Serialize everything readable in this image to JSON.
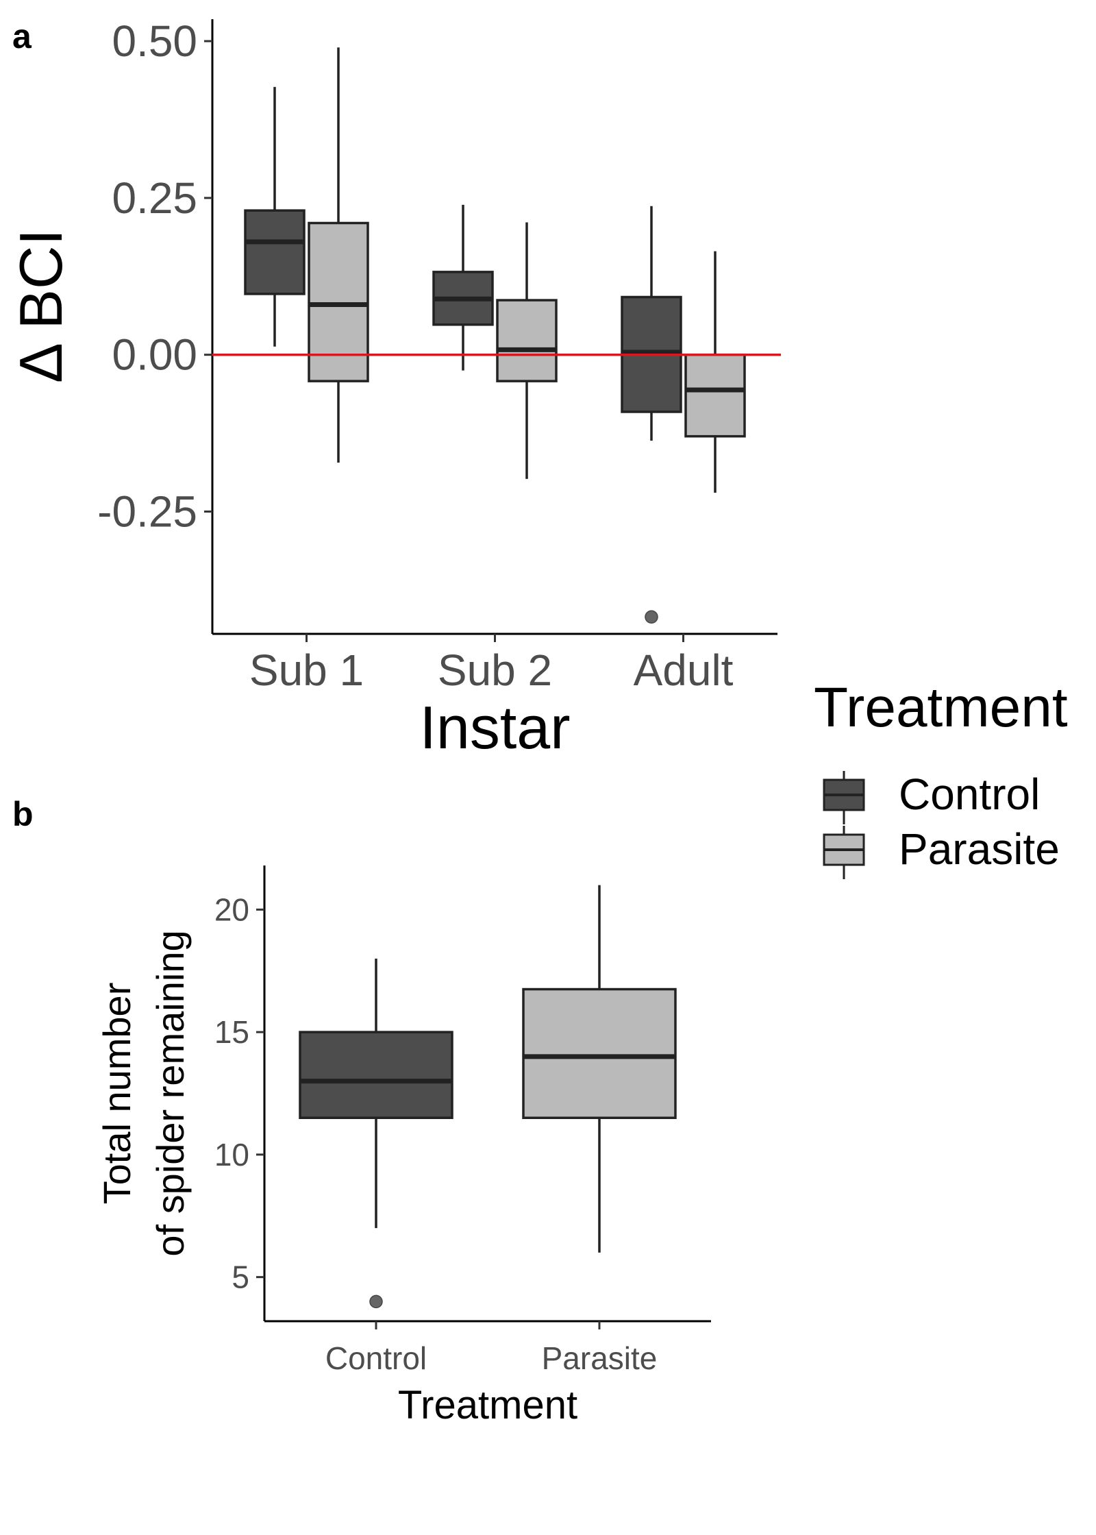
{
  "colors": {
    "control": "#4d4d4d",
    "parasite": "#bababa",
    "outline": "#222222",
    "reference_line": "#e3131b",
    "outlier": "#555555"
  },
  "legend": {
    "title": "Treatment",
    "placement": "right",
    "entries": [
      {
        "label": "Control",
        "color": "#4d4d4d"
      },
      {
        "label": "Parasite",
        "color": "#bababa"
      }
    ]
  },
  "chart_data": [
    {
      "panel_label": "a",
      "type": "box",
      "xlabel": "Instar",
      "ylabel": "Δ BCI",
      "categories": [
        "Sub 1",
        "Sub 2",
        "Adult"
      ],
      "ylim": [
        -0.445,
        0.535
      ],
      "yticks": [
        -0.25,
        0.0,
        0.25,
        0.5
      ],
      "ytick_labels": [
        "-0.25",
        "0.00",
        "0.25",
        "0.50"
      ],
      "reference_line": {
        "y": 0.0,
        "color": "#e3131b"
      },
      "grid": false,
      "series": [
        {
          "name": "Control",
          "boxes": [
            {
              "category": "Sub 1",
              "min": 0.013,
              "q1": 0.097,
              "median": 0.18,
              "q3": 0.23,
              "max": 0.427,
              "outliers": []
            },
            {
              "category": "Sub 2",
              "min": -0.025,
              "q1": 0.048,
              "median": 0.089,
              "q3": 0.132,
              "max": 0.239,
              "outliers": []
            },
            {
              "category": "Adult",
              "min": -0.137,
              "q1": -0.091,
              "median": 0.004,
              "q3": 0.092,
              "max": 0.237,
              "outliers": [
                -0.418
              ]
            }
          ]
        },
        {
          "name": "Parasite",
          "boxes": [
            {
              "category": "Sub 1",
              "min": -0.172,
              "q1": -0.042,
              "median": 0.08,
              "q3": 0.21,
              "max": 0.49,
              "outliers": []
            },
            {
              "category": "Sub 2",
              "min": -0.198,
              "q1": -0.042,
              "median": 0.008,
              "q3": 0.087,
              "max": 0.211,
              "outliers": []
            },
            {
              "category": "Adult",
              "min": -0.22,
              "q1": -0.13,
              "median": -0.056,
              "q3": 0.0,
              "max": 0.165,
              "outliers": []
            }
          ]
        }
      ]
    },
    {
      "panel_label": "b",
      "type": "box",
      "xlabel": "Treatment",
      "ylabel": "Total number\nof spider remaining",
      "ylabel_lines": [
        "Total number",
        "of spider remaining"
      ],
      "categories": [
        "Control",
        "Parasite"
      ],
      "ylim": [
        3.2,
        21.8
      ],
      "yticks": [
        5,
        10,
        15,
        20
      ],
      "ytick_labels": [
        "5",
        "10",
        "15",
        "20"
      ],
      "grid": false,
      "series": [
        {
          "name": "Control",
          "boxes": [
            {
              "category": "Control",
              "min": 7,
              "q1": 11.5,
              "median": 13,
              "q3": 15,
              "max": 18,
              "outliers": [
                4
              ]
            }
          ]
        },
        {
          "name": "Parasite",
          "boxes": [
            {
              "category": "Parasite",
              "min": 6,
              "q1": 11.5,
              "median": 14,
              "q3": 16.75,
              "max": 21,
              "outliers": []
            }
          ]
        }
      ]
    }
  ]
}
